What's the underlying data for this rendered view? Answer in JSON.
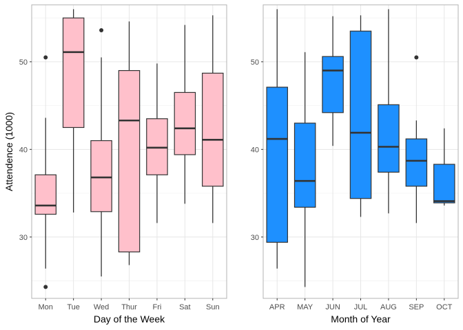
{
  "chart_data": [
    {
      "type": "boxplot",
      "title": "",
      "xlabel": "Day of the Week",
      "ylabel": "Attendence (1000)",
      "ylim": [
        23,
        56.5
      ],
      "yticks": [
        30,
        40,
        50
      ],
      "grid": true,
      "fill_color": "#ffc0cb",
      "categories": [
        "Mon",
        "Tue",
        "Wed",
        "Thur",
        "Fri",
        "Sat",
        "Sun"
      ],
      "boxes": [
        {
          "min": 26.4,
          "q1": 32.6,
          "median": 33.6,
          "q3": 37.1,
          "max": 43.6,
          "outliers": [
            50.5,
            24.3
          ]
        },
        {
          "min": 32.8,
          "q1": 42.5,
          "median": 51.1,
          "q3": 55.0,
          "max": 56.0,
          "outliers": []
        },
        {
          "min": 25.5,
          "q1": 32.9,
          "median": 36.8,
          "q3": 41.0,
          "max": 50.5,
          "outliers": [
            53.6
          ]
        },
        {
          "min": 26.8,
          "q1": 28.3,
          "median": 43.3,
          "q3": 49.0,
          "max": 54.6,
          "outliers": []
        },
        {
          "min": 31.6,
          "q1": 37.1,
          "median": 40.2,
          "q3": 43.5,
          "max": 49.8,
          "outliers": []
        },
        {
          "min": 33.8,
          "q1": 39.4,
          "median": 42.4,
          "q3": 46.5,
          "max": 54.2,
          "outliers": []
        },
        {
          "min": 31.6,
          "q1": 35.8,
          "median": 41.1,
          "q3": 48.7,
          "max": 55.3,
          "outliers": []
        }
      ]
    },
    {
      "type": "boxplot",
      "title": "",
      "xlabel": "Month of Year",
      "ylabel": "",
      "ylim": [
        23,
        56.5
      ],
      "yticks": [
        30,
        40,
        50
      ],
      "grid": true,
      "fill_color": "#1e90ff",
      "categories": [
        "APR",
        "MAY",
        "JUN",
        "JUL",
        "AUG",
        "SEP",
        "OCT"
      ],
      "boxes": [
        {
          "min": 26.4,
          "q1": 29.4,
          "median": 41.2,
          "q3": 47.1,
          "max": 56.0,
          "outliers": []
        },
        {
          "min": 24.3,
          "q1": 33.4,
          "median": 36.4,
          "q3": 43.0,
          "max": 51.1,
          "outliers": []
        },
        {
          "min": 40.4,
          "q1": 44.2,
          "median": 49.0,
          "q3": 50.6,
          "max": 55.2,
          "outliers": []
        },
        {
          "min": 32.3,
          "q1": 34.4,
          "median": 41.9,
          "q3": 53.5,
          "max": 55.3,
          "outliers": []
        },
        {
          "min": 32.7,
          "q1": 37.4,
          "median": 40.3,
          "q3": 45.1,
          "max": 56.0,
          "outliers": []
        },
        {
          "min": 31.6,
          "q1": 35.8,
          "median": 38.7,
          "q3": 41.2,
          "max": 43.3,
          "outliers": [
            50.5
          ]
        },
        {
          "min": 33.6,
          "q1": 33.9,
          "median": 34.1,
          "q3": 38.3,
          "max": 42.4,
          "outliers": []
        }
      ]
    }
  ]
}
